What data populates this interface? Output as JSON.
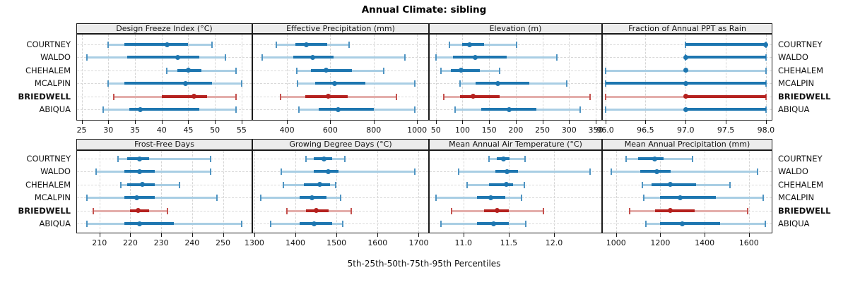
{
  "title": "Annual Climate: sibling",
  "xlabel": "5th-25th-50th-75th-95th Percentiles",
  "sites": [
    "COURTNEY",
    "WALDO",
    "CHEHALEM",
    "MCALPIN",
    "BRIEDWELL",
    "ABIQUA"
  ],
  "highlight_site": "BRIEDWELL",
  "colors": {
    "normal": {
      "dark": "#1d76b0",
      "light": "#a9cee4",
      "cap": "#4f94c2"
    },
    "highlight": {
      "dark": "#b5211e",
      "light": "#e4aeab",
      "cap": "#c4524f"
    },
    "strip_bg": "#ececec",
    "border": "#1a1a1a"
  },
  "chart_data": {
    "type": "dotplot-percentiles",
    "percentile_levels": [
      5,
      25,
      50,
      75,
      95
    ],
    "legend_note": "dot = 50th percentile, thick bar = 25th-75th, thin line with caps = 5th-95th",
    "panels": [
      {
        "title": "Design Freeze Index (°C)",
        "band": 0,
        "col": 0,
        "domain": [
          24,
          57
        ],
        "ticks": [
          25,
          30,
          35,
          40,
          45,
          50,
          55
        ],
        "tick_labels": [
          "25",
          "30",
          "35",
          "40",
          "45",
          "50",
          "55"
        ],
        "series": {
          "COURTNEY": [
            30,
            33,
            41,
            45,
            49.5
          ],
          "WALDO": [
            26,
            33.5,
            43,
            47,
            52
          ],
          "CHEHALEM": [
            41,
            43,
            45,
            47.5,
            54
          ],
          "MCALPIN": [
            30,
            33,
            44.5,
            49.5,
            55
          ],
          "BRIEDWELL": [
            31,
            40,
            46,
            48.5,
            54
          ],
          "ABIQUA": [
            29,
            34,
            36,
            47,
            54
          ]
        }
      },
      {
        "title": "Effective Precipitation (mm)",
        "band": 0,
        "col": 1,
        "domain": [
          240,
          1055
        ],
        "ticks": [
          400,
          600,
          800,
          1000
        ],
        "tick_labels": [
          "400",
          "600",
          "800",
          "1000"
        ],
        "series": {
          "COURTNEY": [
            350,
            440,
            490,
            585,
            685
          ],
          "WALDO": [
            285,
            430,
            520,
            615,
            945
          ],
          "CHEHALEM": [
            445,
            510,
            580,
            700,
            845
          ],
          "MCALPIN": [
            450,
            530,
            620,
            760,
            990
          ],
          "BRIEDWELL": [
            370,
            485,
            590,
            680,
            905
          ],
          "ABIQUA": [
            455,
            545,
            635,
            800,
            990
          ]
        }
      },
      {
        "title": "Elevation (m)",
        "band": 0,
        "col": 2,
        "domain": [
          37,
          362
        ],
        "ticks": [
          50,
          100,
          150,
          200,
          250,
          300,
          350
        ],
        "tick_labels": [
          "50",
          "100",
          "150",
          "200",
          "250",
          "300",
          "350"
        ],
        "series": {
          "COURTNEY": [
            75,
            100,
            113,
            140,
            202
          ],
          "WALDO": [
            50,
            82,
            124,
            183,
            277
          ],
          "CHEHALEM": [
            60,
            78,
            98,
            133,
            170
          ],
          "MCALPIN": [
            95,
            125,
            166,
            225,
            296
          ],
          "BRIEDWELL": [
            65,
            95,
            120,
            170,
            340
          ],
          "ABIQUA": [
            86,
            135,
            188,
            238,
            321
          ]
        }
      },
      {
        "title": "Fraction of Annual PPT as Rain",
        "band": 0,
        "col": 3,
        "domain": [
          95.96,
          98.08
        ],
        "ticks": [
          96.0,
          96.5,
          97.0,
          97.5,
          98.0
        ],
        "tick_labels": [
          "96.0",
          "96.5",
          "97.0",
          "97.5",
          "98.0"
        ],
        "series": {
          "COURTNEY": [
            97,
            97,
            98,
            98,
            98
          ],
          "WALDO": [
            97,
            97,
            97,
            98,
            98
          ],
          "CHEHALEM": [
            96,
            97,
            97,
            97,
            98
          ],
          "MCALPIN": [
            96,
            96,
            97,
            98,
            98
          ],
          "BRIEDWELL": [
            96,
            97,
            97,
            98,
            98
          ],
          "ABIQUA": [
            96,
            97,
            97,
            98,
            98
          ]
        }
      },
      {
        "title": "Frost-Free Days",
        "band": 1,
        "col": 0,
        "domain": [
          202.5,
          259.5
        ],
        "ticks": [
          210,
          220,
          230,
          240,
          250
        ],
        "tick_labels": [
          "210",
          "220",
          "230",
          "240",
          "250"
        ],
        "series": {
          "COURTNEY": [
            216,
            219,
            223,
            226,
            246
          ],
          "WALDO": [
            209,
            218,
            223,
            228,
            246
          ],
          "CHEHALEM": [
            217,
            219,
            224,
            228,
            236
          ],
          "MCALPIN": [
            206,
            218,
            222,
            228,
            248
          ],
          "BRIEDWELL": [
            208,
            220,
            222.5,
            226,
            232
          ],
          "ABIQUA": [
            206,
            218,
            223,
            234,
            256
          ]
        }
      },
      {
        "title": "Growing Degree Days (°C)",
        "band": 1,
        "col": 1,
        "domain": [
          1295,
          1725
        ],
        "ticks": [
          1300,
          1400,
          1500,
          1600,
          1700
        ],
        "tick_labels": [
          "1300",
          "1400",
          "1500",
          "1600",
          "1700"
        ],
        "series": {
          "COURTNEY": [
            1425,
            1445,
            1470,
            1490,
            1520
          ],
          "WALDO": [
            1365,
            1445,
            1480,
            1505,
            1690
          ],
          "CHEHALEM": [
            1370,
            1420,
            1460,
            1485,
            1498
          ],
          "MCALPIN": [
            1315,
            1410,
            1440,
            1475,
            1510
          ],
          "BRIEDWELL": [
            1380,
            1425,
            1450,
            1480,
            1535
          ],
          "ABIQUA": [
            1340,
            1410,
            1445,
            1490,
            1515
          ]
        }
      },
      {
        "title": "Mean Annual Air Temperature (°C)",
        "band": 1,
        "col": 2,
        "domain": [
          10.62,
          12.53
        ],
        "ticks": [
          11.0,
          11.5,
          12.0
        ],
        "tick_labels": [
          "11.0",
          "11.5",
          "12.0"
        ],
        "series": {
          "COURTNEY": [
            11.28,
            11.37,
            11.44,
            11.51,
            11.68
          ],
          "WALDO": [
            10.95,
            11.35,
            11.48,
            11.6,
            12.4
          ],
          "CHEHALEM": [
            11.04,
            11.28,
            11.47,
            11.55,
            11.67
          ],
          "MCALPIN": [
            10.7,
            11.15,
            11.3,
            11.46,
            11.64
          ],
          "BRIEDWELL": [
            10.87,
            11.23,
            11.37,
            11.5,
            11.88
          ],
          "ABIQUA": [
            10.75,
            11.15,
            11.33,
            11.5,
            11.69
          ]
        }
      },
      {
        "title": "Mean Annual Precipitation (mm)",
        "band": 1,
        "col": 3,
        "domain": [
          937,
          1706
        ],
        "ticks": [
          1000,
          1200,
          1400,
          1600
        ],
        "tick_labels": [
          "1000",
          "1200",
          "1400",
          "1600"
        ],
        "series": {
          "COURTNEY": [
            1045,
            1100,
            1175,
            1215,
            1345
          ],
          "WALDO": [
            980,
            1110,
            1185,
            1245,
            1640
          ],
          "CHEHALEM": [
            1120,
            1160,
            1245,
            1360,
            1515
          ],
          "MCALPIN": [
            1125,
            1200,
            1290,
            1450,
            1665
          ],
          "BRIEDWELL": [
            1060,
            1175,
            1245,
            1355,
            1595
          ],
          "ABIQUA": [
            1135,
            1200,
            1300,
            1470,
            1675
          ]
        }
      }
    ]
  }
}
